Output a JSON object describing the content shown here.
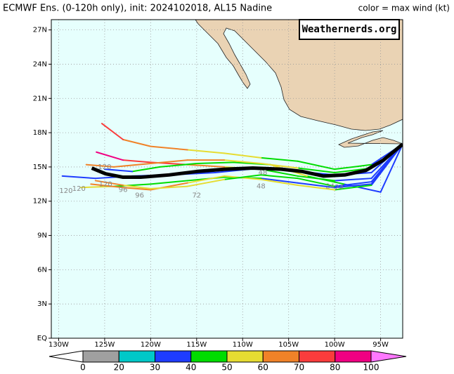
{
  "header": {
    "title": "ECMWF Ens. (0-120h only), init: 2024102018, AL15 Nadine",
    "legend_title": "color = max wind (kt)",
    "watermark": "Weathernerds.org"
  },
  "map": {
    "xlim": [
      -130.8,
      -92.6
    ],
    "ylim": [
      0,
      27.9
    ],
    "xticks": [
      {
        "value": -130,
        "label": "130W"
      },
      {
        "value": -125,
        "label": "125W"
      },
      {
        "value": -120,
        "label": "120W"
      },
      {
        "value": -115,
        "label": "115W"
      },
      {
        "value": -110,
        "label": "110W"
      },
      {
        "value": -105,
        "label": "105W"
      },
      {
        "value": -100,
        "label": "100W"
      },
      {
        "value": -95,
        "label": "95W"
      }
    ],
    "yticks": [
      {
        "value": 0,
        "label": "EQ"
      },
      {
        "value": 3,
        "label": "3N"
      },
      {
        "value": 6,
        "label": "6N"
      },
      {
        "value": 9,
        "label": "9N"
      },
      {
        "value": 12,
        "label": "12N"
      },
      {
        "value": 15,
        "label": "15N"
      },
      {
        "value": 18,
        "label": "18N"
      },
      {
        "value": 21,
        "label": "21N"
      },
      {
        "value": 24,
        "label": "24N"
      },
      {
        "value": 27,
        "label": "27N"
      }
    ],
    "grid": true,
    "tracks": [
      {
        "lon": [
          -92.6,
          -96,
          -100,
          -104,
          -108,
          -112,
          -116,
          -120,
          -123,
          -125.3
        ],
        "lat": [
          17,
          15.2,
          14.8,
          15.5,
          15.8,
          16.2,
          16.5,
          16.8,
          17.4,
          18.8
        ],
        "wind": [
          35,
          40,
          42,
          48,
          50,
          55,
          60,
          65,
          70,
          70
        ]
      },
      {
        "lon": [
          -92.6,
          -96,
          -100,
          -104,
          -108,
          -112,
          -116,
          -120,
          -123,
          -125.9
        ],
        "lat": [
          17,
          14,
          13.8,
          14.2,
          14.8,
          15,
          15.2,
          15.4,
          15.6,
          16.3
        ],
        "wind": [
          30,
          35,
          40,
          45,
          55,
          65,
          72,
          78,
          82,
          85
        ]
      },
      {
        "lon": [
          -92.6,
          -96,
          -100,
          -104,
          -108,
          -112,
          -116,
          -120,
          -124,
          -127.6
        ],
        "lat": [
          17,
          13.5,
          13.2,
          13.6,
          14,
          14.1,
          13.8,
          13.5,
          13.3,
          13.2
        ],
        "wind": [
          30,
          32,
          35,
          38,
          40,
          42,
          45,
          48,
          50,
          50
        ]
      },
      {
        "lon": [
          -92.6,
          -96,
          -100,
          -104,
          -108,
          -113,
          -118,
          -122,
          -126,
          -129.6
        ],
        "lat": [
          17,
          14.5,
          14.3,
          14.6,
          14.9,
          14.5,
          14.3,
          14.2,
          14,
          14.2
        ],
        "wind": [
          30,
          32,
          34,
          35,
          36,
          38,
          36,
          35,
          34,
          33
        ]
      },
      {
        "lon": [
          -92.6,
          -95,
          -99,
          -103,
          -107,
          -111,
          -115,
          -119,
          -122,
          -125
        ],
        "lat": [
          17,
          12.8,
          13.5,
          14.2,
          15.2,
          15.4,
          15.3,
          15,
          14.6,
          14.8
        ],
        "wind": [
          35,
          38,
          45,
          50,
          48,
          46,
          44,
          40,
          38,
          36
        ]
      },
      {
        "lon": [
          -92.6,
          -96,
          -100,
          -104,
          -108,
          -112,
          -116,
          -120,
          -123,
          -126.5
        ],
        "lat": [
          17,
          13.4,
          13,
          13.4,
          13.9,
          14.2,
          13.6,
          13,
          13.2,
          13.5
        ],
        "wind": [
          38,
          42,
          50,
          52,
          55,
          58,
          60,
          62,
          66,
          70
        ]
      },
      {
        "lon": [
          -92.6,
          -96,
          -100,
          -104,
          -108,
          -112,
          -116,
          -120,
          -124,
          -127
        ],
        "lat": [
          17,
          14.9,
          14.5,
          14.9,
          15.3,
          15.6,
          15.6,
          15.3,
          15,
          15.2
        ],
        "wind": [
          40,
          45,
          48,
          52,
          55,
          60,
          62,
          65,
          68,
          72
        ]
      },
      {
        "lon": [
          -92.6,
          -96,
          -100,
          -104,
          -108,
          -112,
          -116,
          -120,
          -123,
          -126
        ],
        "lat": [
          17,
          13.7,
          13.3,
          14,
          14.3,
          13.9,
          13.3,
          13.1,
          13.4,
          13.8
        ],
        "wind": [
          32,
          36,
          40,
          44,
          46,
          50,
          55,
          58,
          62,
          66
        ]
      }
    ],
    "mean_track": {
      "lon": [
        -126.4,
        -124.9,
        -123,
        -121.1,
        -118,
        -115,
        -111.9,
        -108.9,
        -105.8,
        -103.5,
        -101.2,
        -98.9,
        -96.6,
        -94.7,
        -92.6
      ],
      "lat": [
        14.9,
        14.4,
        14.1,
        14.1,
        14.3,
        14.6,
        14.8,
        14.9,
        14.8,
        14.6,
        14.2,
        14.3,
        14.7,
        15.6,
        17
      ]
    },
    "hour_labels": [
      {
        "text": "120",
        "lon": -129.2,
        "lat": 12.9
      },
      {
        "text": "120",
        "lon": -127.8,
        "lat": 13.1
      },
      {
        "text": "120",
        "lon": -124.9,
        "lat": 13.5
      },
      {
        "text": "120",
        "lon": -125,
        "lat": 15
      },
      {
        "text": "96",
        "lon": -121.2,
        "lat": 12.5
      },
      {
        "text": "96",
        "lon": -123,
        "lat": 13
      },
      {
        "text": "72",
        "lon": -115,
        "lat": 12.5
      },
      {
        "text": "48",
        "lon": -108,
        "lat": 13.3
      },
      {
        "text": "48",
        "lon": -107.8,
        "lat": 14.5
      },
      {
        "text": "24",
        "lon": -100.5,
        "lat": 13.3
      },
      {
        "text": "24",
        "lon": -99.5,
        "lat": 13.2
      }
    ]
  },
  "colorbar": {
    "levels": [
      0,
      20,
      30,
      40,
      50,
      60,
      70,
      80,
      100
    ],
    "colors": [
      "#ffffff",
      "#a0a0a0",
      "#00c8c8",
      "#1e3cff",
      "#00dc00",
      "#e6dc32",
      "#f08228",
      "#fa3c3c",
      "#f00082",
      "#ff78ff"
    ]
  }
}
